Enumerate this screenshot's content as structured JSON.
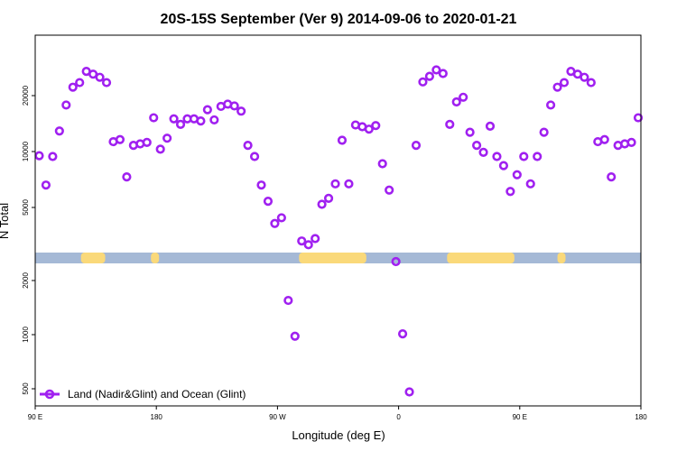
{
  "chart_data": {
    "type": "scatter",
    "title": "20S-15S September (Ver 9)   2014-09-06 to 2020-01-21",
    "xlabel": "Longitude (deg E)",
    "ylabel": "N Total",
    "x_ticks": [
      {
        "value": -90,
        "label": "90 E"
      },
      {
        "value": -45,
        "label": "180"
      },
      {
        "value": 0,
        "label": "90 W"
      },
      {
        "value": 45,
        "label": "0"
      },
      {
        "value": 90,
        "label": "90 E"
      },
      {
        "value": 135,
        "label": "180"
      }
    ],
    "xlim": [
      -90,
      135
    ],
    "y_scale": "log",
    "ylim": [
      400,
      30000
    ],
    "y_ticks": [
      {
        "value": 500,
        "label": "500"
      },
      {
        "value": 1000,
        "label": "1000"
      },
      {
        "value": 2000,
        "label": "2000"
      },
      {
        "value": 5000,
        "label": "5000"
      },
      {
        "value": 10000,
        "label": "10000"
      },
      {
        "value": 20000,
        "label": "20000"
      }
    ],
    "marker_color": "#a020f0",
    "surface_band": {
      "y": 2700,
      "ocean_color": "#a5b9d6",
      "land_color": "#fad97a",
      "land_segments": [
        [
          -73,
          -64
        ],
        [
          -47,
          -44
        ],
        [
          8,
          33
        ],
        [
          63,
          88
        ],
        [
          104,
          107
        ],
        [
          153,
          163
        ]
      ]
    },
    "series": [
      {
        "name": "Land (Nadir&Glint) and Ocean (Glint)",
        "points": [
          [
            -88.5,
            9500
          ],
          [
            -86,
            6600
          ],
          [
            -83.5,
            9400
          ],
          [
            -81,
            12900
          ],
          [
            -78.5,
            17800
          ],
          [
            -76,
            22200
          ],
          [
            -73.5,
            23500
          ],
          [
            -71,
            27000
          ],
          [
            -68.5,
            26100
          ],
          [
            -66,
            25100
          ],
          [
            -63.5,
            23500
          ],
          [
            -61,
            11300
          ],
          [
            -58.5,
            11600
          ],
          [
            -56,
            7300
          ],
          [
            -53.5,
            10800
          ],
          [
            -51,
            11000
          ],
          [
            -48.5,
            11200
          ],
          [
            -46,
            15200
          ],
          [
            -43.5,
            10300
          ],
          [
            -41,
            11800
          ],
          [
            -38.5,
            15000
          ],
          [
            -36,
            14000
          ],
          [
            -33.5,
            15000
          ],
          [
            -31,
            15000
          ],
          [
            -28.5,
            14600
          ],
          [
            -26,
            16800
          ],
          [
            -23.5,
            14800
          ],
          [
            -21,
            17500
          ],
          [
            -18.5,
            18000
          ],
          [
            -16,
            17600
          ],
          [
            -13.5,
            16500
          ],
          [
            -11,
            10800
          ],
          [
            -8.5,
            9400
          ],
          [
            -6,
            6600
          ],
          [
            -3.5,
            5400
          ],
          [
            -1,
            4100
          ],
          [
            1.5,
            4400
          ],
          [
            4,
            1550
          ],
          [
            6.5,
            980
          ],
          [
            9,
            3300
          ],
          [
            11.5,
            3150
          ],
          [
            14,
            3400
          ],
          [
            16.5,
            5200
          ],
          [
            19,
            5600
          ],
          [
            21.5,
            6700
          ],
          [
            24,
            11500
          ],
          [
            26.5,
            6700
          ],
          [
            29,
            13900
          ],
          [
            31.5,
            13600
          ],
          [
            34,
            13200
          ],
          [
            36.5,
            13800
          ],
          [
            39,
            8600
          ],
          [
            41.5,
            6200
          ],
          [
            44,
            2550
          ],
          [
            46.5,
            1010
          ],
          [
            49,
            480
          ],
          [
            51.5,
            10800
          ],
          [
            54,
            23700
          ],
          [
            56.5,
            25400
          ],
          [
            59,
            27500
          ],
          [
            61.5,
            26300
          ],
          [
            64,
            14000
          ],
          [
            66.5,
            18500
          ],
          [
            69,
            19600
          ],
          [
            71.5,
            12700
          ],
          [
            74,
            10800
          ],
          [
            76.5,
            9900
          ],
          [
            79,
            13700
          ],
          [
            81.5,
            9400
          ],
          [
            84,
            8400
          ],
          [
            86.5,
            6100
          ],
          [
            89,
            7500
          ],
          [
            91.5,
            9400
          ],
          [
            94,
            6700
          ],
          [
            96.5,
            9400
          ],
          [
            99,
            12700
          ],
          [
            101.5,
            17800
          ],
          [
            104,
            22200
          ],
          [
            106.5,
            23500
          ],
          [
            109,
            27000
          ],
          [
            111.5,
            26100
          ],
          [
            114,
            25100
          ],
          [
            116.5,
            23500
          ],
          [
            119,
            11300
          ],
          [
            121.5,
            11600
          ],
          [
            124,
            7300
          ],
          [
            126.5,
            10800
          ],
          [
            129,
            11000
          ],
          [
            131.5,
            11200
          ],
          [
            134,
            15200
          ]
        ]
      }
    ],
    "legend": {
      "position": "bottom-left"
    }
  }
}
